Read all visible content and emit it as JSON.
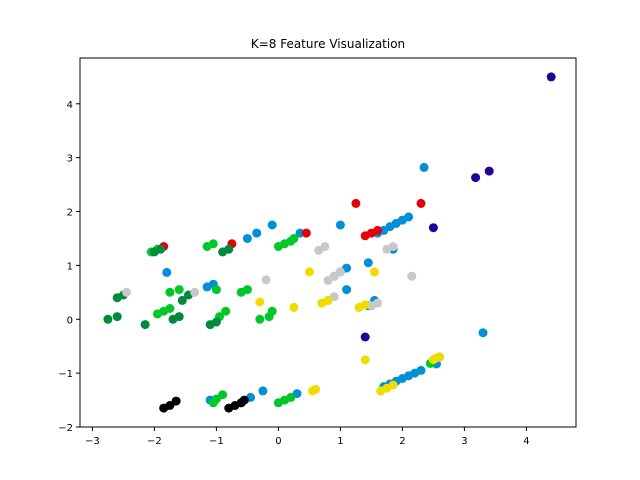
{
  "chart_data": {
    "type": "scatter",
    "title": "K=8 Feature Visualization",
    "xlabel": "",
    "ylabel": "",
    "xlim": [
      -3.2,
      4.8
    ],
    "ylim": [
      -2.0,
      4.85
    ],
    "xticks": [
      -3,
      -2,
      -1,
      0,
      1,
      2,
      3,
      4
    ],
    "yticks": [
      -2,
      -1,
      0,
      1,
      2,
      3,
      4
    ],
    "grid": false,
    "legend": "none",
    "series": [
      {
        "color": "#22009a",
        "points": [
          [
            4.4,
            4.5
          ],
          [
            3.18,
            2.63
          ],
          [
            3.4,
            2.75
          ],
          [
            2.5,
            1.7
          ],
          [
            1.4,
            -0.33
          ]
        ]
      },
      {
        "color": "#0090d8",
        "points": [
          [
            2.35,
            2.82
          ],
          [
            1.0,
            1.75
          ],
          [
            0.35,
            1.6
          ],
          [
            -0.1,
            1.75
          ],
          [
            -1.8,
            0.87
          ],
          [
            -0.35,
            1.6
          ],
          [
            -0.5,
            1.5
          ],
          [
            1.45,
            1.05
          ],
          [
            1.1,
            0.55
          ],
          [
            1.55,
            0.35
          ],
          [
            1.45,
            0.25
          ],
          [
            1.85,
            1.3
          ],
          [
            -1.15,
            0.6
          ],
          [
            -1.05,
            0.65
          ],
          [
            3.3,
            -0.25
          ],
          [
            2.6,
            -0.7
          ],
          [
            2.55,
            -0.83
          ],
          [
            -0.25,
            -1.33
          ],
          [
            0.3,
            -1.38
          ],
          [
            -0.45,
            -1.45
          ],
          [
            -1.1,
            -1.5
          ],
          [
            -0.6,
            -1.55
          ],
          [
            1.7,
            -1.25
          ],
          [
            1.8,
            -1.2
          ],
          [
            1.9,
            -1.15
          ],
          [
            2.0,
            -1.1
          ],
          [
            2.1,
            -1.05
          ],
          [
            2.2,
            -1.0
          ],
          [
            2.3,
            -0.95
          ],
          [
            1.6,
            1.6
          ],
          [
            1.7,
            1.65
          ],
          [
            1.8,
            1.72
          ],
          [
            1.9,
            1.78
          ],
          [
            2.0,
            1.84
          ],
          [
            2.1,
            1.9
          ],
          [
            0.9,
            0.8
          ],
          [
            1.0,
            0.88
          ],
          [
            1.1,
            0.95
          ]
        ]
      },
      {
        "color": "#e6000a",
        "points": [
          [
            1.25,
            2.15
          ],
          [
            2.3,
            2.15
          ],
          [
            0.45,
            1.6
          ],
          [
            -1.85,
            1.35
          ],
          [
            1.4,
            1.55
          ],
          [
            1.5,
            1.6
          ],
          [
            1.6,
            1.65
          ],
          [
            -0.75,
            1.4
          ]
        ]
      },
      {
        "color": "#00c828",
        "points": [
          [
            -2.05,
            1.25
          ],
          [
            -1.95,
            1.3
          ],
          [
            -1.15,
            1.35
          ],
          [
            -1.05,
            1.4
          ],
          [
            -1.75,
            0.5
          ],
          [
            -1.6,
            0.55
          ],
          [
            -1.0,
            0.55
          ],
          [
            -0.6,
            0.5
          ],
          [
            -0.5,
            0.55
          ],
          [
            -1.95,
            0.1
          ],
          [
            -1.85,
            0.15
          ],
          [
            -1.75,
            0.2
          ],
          [
            -0.95,
            0.05
          ],
          [
            -0.85,
            0.15
          ],
          [
            -0.3,
            0.0
          ],
          [
            -0.15,
            0.05
          ],
          [
            -0.1,
            0.15
          ],
          [
            -0.9,
            -1.4
          ],
          [
            -1.0,
            -1.48
          ],
          [
            -1.05,
            -1.55
          ],
          [
            0.0,
            -1.55
          ],
          [
            0.1,
            -1.5
          ],
          [
            0.2,
            -1.45
          ],
          [
            2.45,
            -0.82
          ],
          [
            0.0,
            1.35
          ],
          [
            0.1,
            1.4
          ],
          [
            0.2,
            1.45
          ],
          [
            0.25,
            1.5
          ]
        ]
      },
      {
        "color": "#008a3c",
        "points": [
          [
            -2.6,
            0.4
          ],
          [
            -2.5,
            0.45
          ],
          [
            -2.75,
            0.0
          ],
          [
            -2.6,
            0.05
          ],
          [
            -2.15,
            -0.1
          ],
          [
            -1.7,
            0.0
          ],
          [
            -1.6,
            0.05
          ],
          [
            -1.55,
            0.35
          ],
          [
            -1.45,
            0.45
          ],
          [
            -1.1,
            -0.1
          ],
          [
            -1.0,
            -0.05
          ],
          [
            -0.9,
            1.25
          ],
          [
            -0.8,
            1.3
          ],
          [
            -2.0,
            1.25
          ],
          [
            -1.9,
            1.3
          ]
        ]
      },
      {
        "color": "#c8c8c8",
        "points": [
          [
            -2.45,
            0.5
          ],
          [
            -1.35,
            0.5
          ],
          [
            -0.2,
            0.73
          ],
          [
            0.65,
            1.28
          ],
          [
            0.75,
            1.35
          ],
          [
            0.8,
            0.72
          ],
          [
            0.9,
            0.8
          ],
          [
            1.0,
            0.88
          ],
          [
            0.8,
            0.35
          ],
          [
            0.9,
            0.42
          ],
          [
            1.5,
            0.25
          ],
          [
            1.6,
            0.3
          ],
          [
            1.75,
            1.3
          ],
          [
            1.85,
            1.35
          ],
          [
            2.15,
            0.8
          ]
        ]
      },
      {
        "color": "#f0dc00",
        "points": [
          [
            0.5,
            0.88
          ],
          [
            1.55,
            0.88
          ],
          [
            -0.3,
            0.32
          ],
          [
            0.25,
            0.22
          ],
          [
            0.7,
            0.3
          ],
          [
            0.8,
            0.35
          ],
          [
            1.3,
            0.22
          ],
          [
            1.4,
            0.27
          ],
          [
            1.4,
            -0.75
          ],
          [
            0.55,
            -1.33
          ],
          [
            0.6,
            -1.3
          ],
          [
            1.65,
            -1.33
          ],
          [
            1.75,
            -1.28
          ],
          [
            1.85,
            -1.22
          ],
          [
            2.5,
            -0.75
          ],
          [
            2.55,
            -0.72
          ],
          [
            2.6,
            -0.7
          ]
        ]
      },
      {
        "color": "#000000",
        "points": [
          [
            -1.85,
            -1.65
          ],
          [
            -1.75,
            -1.6
          ],
          [
            -1.65,
            -1.52
          ],
          [
            -0.8,
            -1.65
          ],
          [
            -0.7,
            -1.6
          ],
          [
            -0.6,
            -1.55
          ],
          [
            -0.55,
            -1.5
          ]
        ]
      }
    ]
  }
}
